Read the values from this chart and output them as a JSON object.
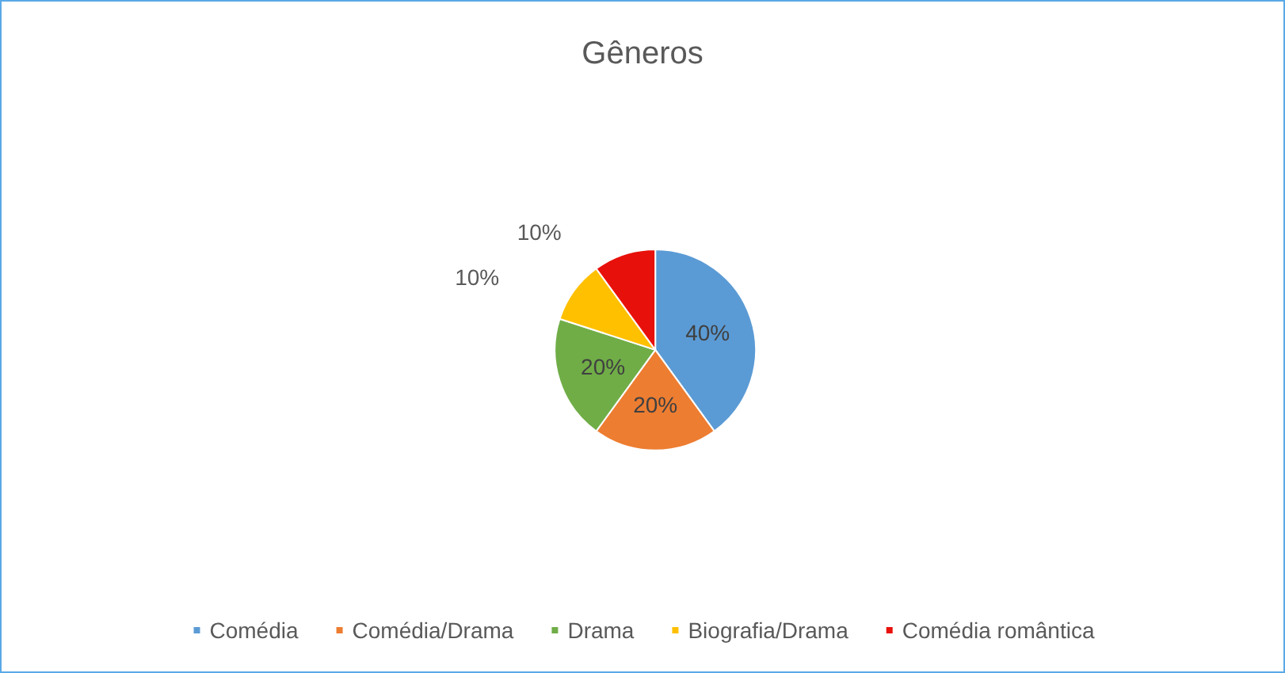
{
  "chart_data": {
    "type": "pie",
    "title": "Gêneros",
    "categories": [
      "Comédia",
      "Comédia/Drama",
      "Drama",
      "Biografia/Drama",
      "Comédia romântica"
    ],
    "values": [
      40,
      20,
      20,
      10,
      10
    ],
    "colors": [
      "#5b9bd5",
      "#ed7d31",
      "#70ad47",
      "#ffc000",
      "#e8100a"
    ],
    "value_labels": [
      "40%",
      "20%",
      "20%",
      "10%",
      "10%"
    ],
    "legend": "bottom"
  }
}
